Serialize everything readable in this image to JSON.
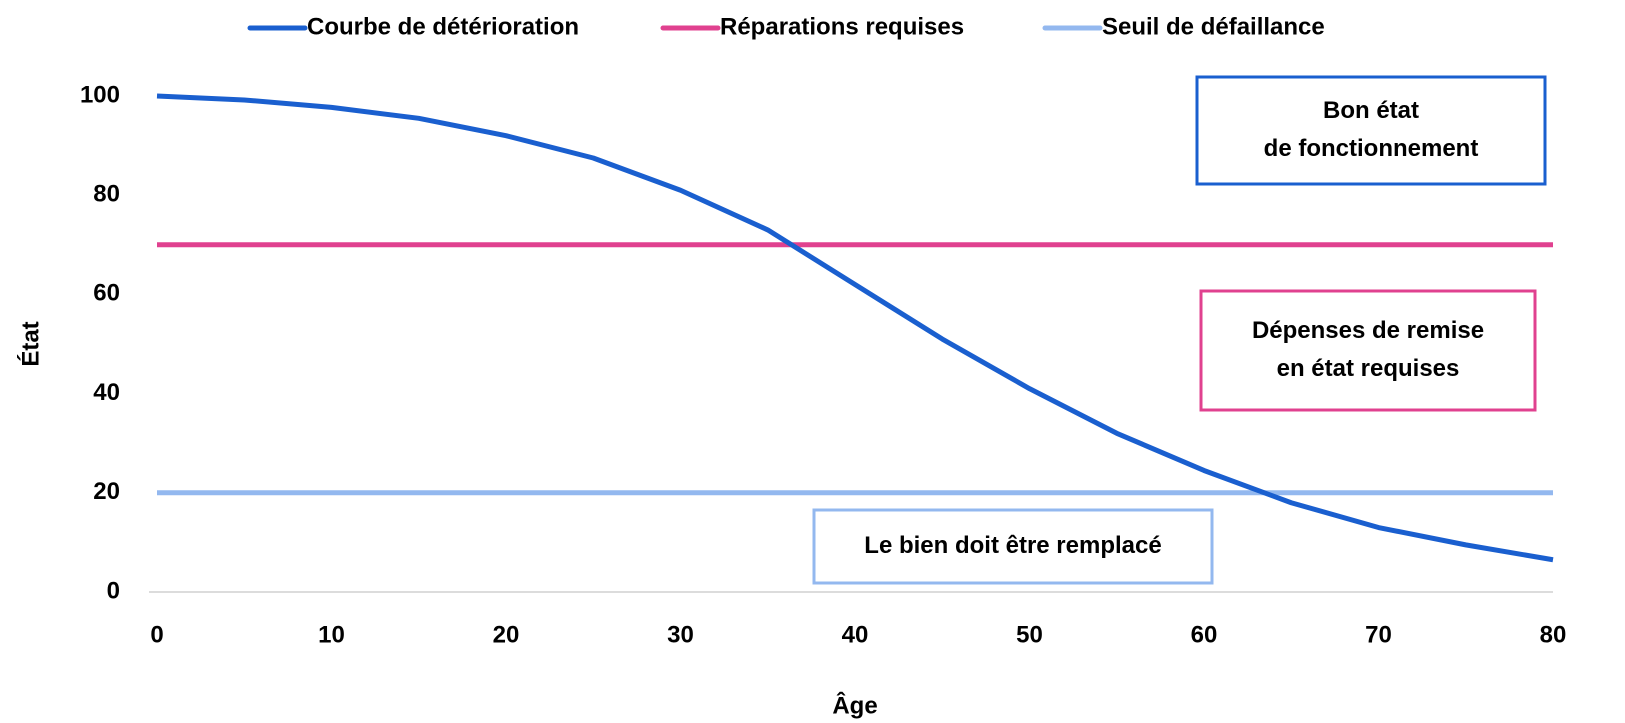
{
  "chart_data": {
    "type": "line",
    "x_label": "Âge",
    "y_label": "État",
    "xlim": [
      0,
      80
    ],
    "ylim": [
      0,
      100
    ],
    "xticks": [
      0,
      10,
      20,
      30,
      40,
      50,
      60,
      70,
      80
    ],
    "yticks": [
      0,
      20,
      40,
      60,
      80,
      100
    ],
    "series": [
      {
        "name": "Courbe de détérioration",
        "color": "#1a5fcf",
        "x": [
          0,
          5,
          10,
          15,
          20,
          25,
          30,
          35,
          40,
          45,
          50,
          55,
          60,
          65,
          70,
          75,
          80
        ],
        "values": [
          100,
          99.2,
          97.7,
          95.5,
          92,
          87.5,
          81,
          73,
          62,
          51,
          41,
          32,
          24.5,
          18,
          13,
          9.5,
          6.5
        ]
      },
      {
        "name": "Réparations requises",
        "color": "#e0418f",
        "x": [
          0,
          80
        ],
        "values": [
          70,
          70
        ]
      },
      {
        "name": "Seuil de défaillance",
        "color": "#93b8ef",
        "x": [
          0,
          80
        ],
        "values": [
          20,
          20
        ]
      }
    ],
    "annotations": [
      {
        "lines": [
          "Bon état",
          "de fonctionnement"
        ],
        "color": "#1a5fcf"
      },
      {
        "lines": [
          "Dépenses de remise",
          "en état requises"
        ],
        "color": "#e0418f"
      },
      {
        "lines": [
          "Le bien doit être remplacé"
        ],
        "color": "#93b8ef"
      }
    ]
  }
}
